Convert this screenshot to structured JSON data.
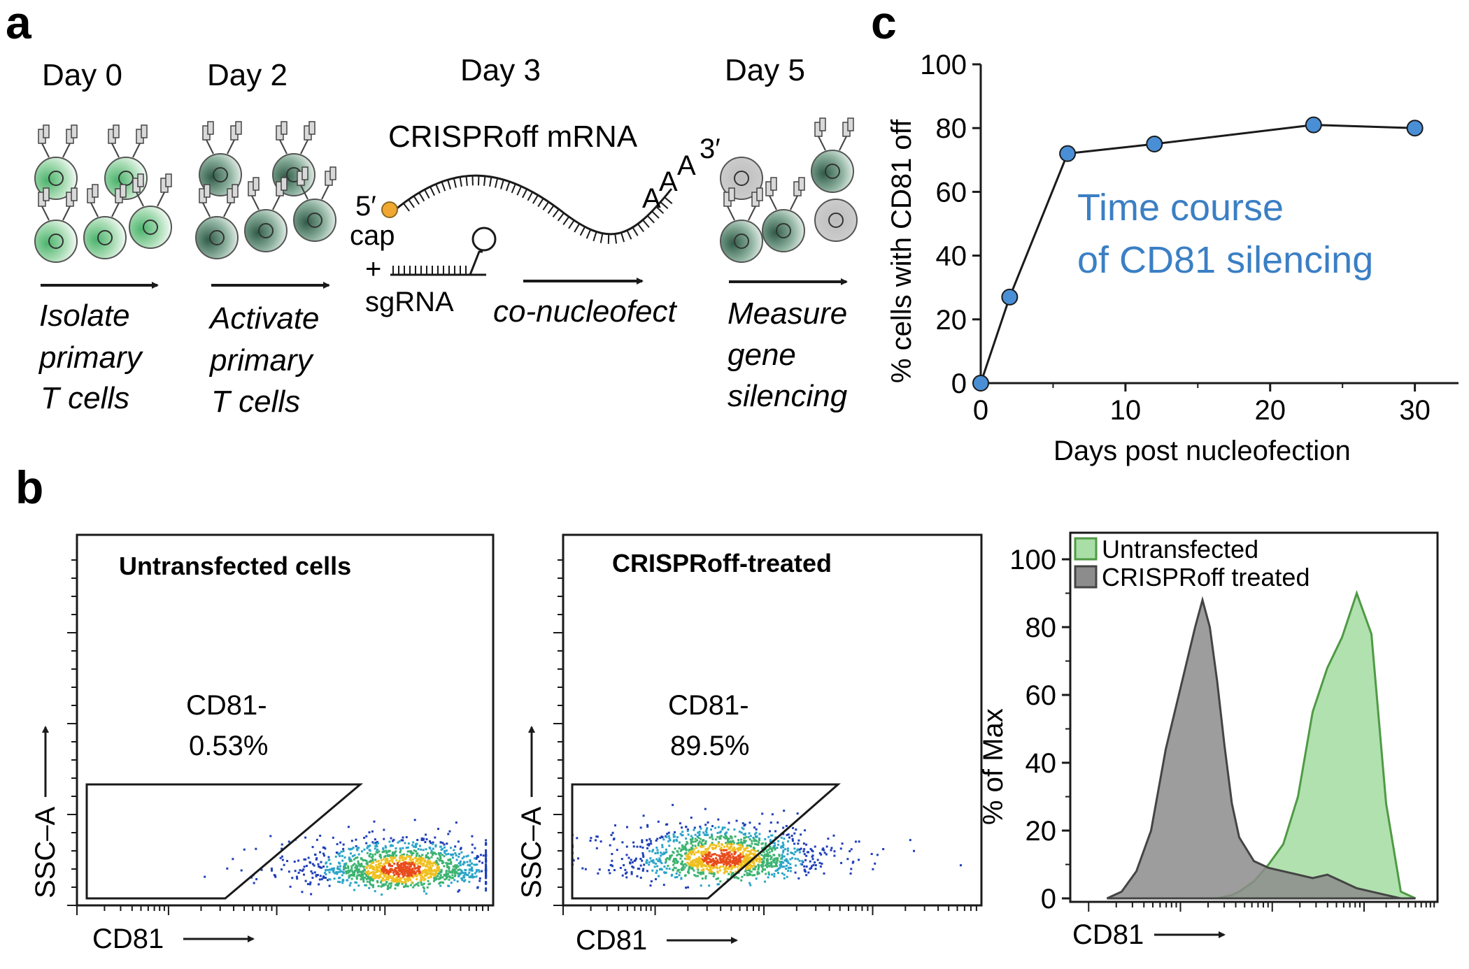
{
  "panels": {
    "a": "a",
    "b": "b",
    "c": "c"
  },
  "panel_a": {
    "days": [
      "Day 0",
      "Day 2",
      "Day 3",
      "Day 5"
    ],
    "steps": [
      [
        "Isolate",
        "primary",
        "T cells"
      ],
      [
        "Activate",
        "primary",
        "T cells"
      ],
      [
        "co-nucleofect"
      ],
      [
        "Measure",
        "gene",
        "silencing"
      ]
    ],
    "mrna_label": "CRISPRoff mRNA",
    "five_prime": "5′",
    "cap": "cap",
    "plus": "+",
    "sgrna": "sgRNA",
    "polya": [
      "A",
      "A",
      "A"
    ],
    "three_prime": "3′"
  },
  "colors": {
    "blue_point": "#4a8fd6",
    "blue_text": "#3b7fc4",
    "cell_green": "#4bb36c",
    "cell_dark": "#2f5b48",
    "cap_orange": "#f0a830",
    "hist_gray": "#8c8c8c",
    "hist_green": "#a9dea6",
    "hist_green_line": "#4f9a45"
  },
  "chart_data": [
    {
      "type": "line",
      "title": "",
      "annotation": [
        "Time course",
        "of CD81 silencing"
      ],
      "xlabel": "Days post nucleofection",
      "ylabel": "% cells with CD81 off",
      "x": [
        0,
        2,
        6,
        12,
        23,
        30
      ],
      "y": [
        0,
        27,
        72,
        75,
        81,
        80
      ],
      "xlim": [
        0,
        32
      ],
      "ylim": [
        0,
        100
      ],
      "xticks": [
        0,
        10,
        20,
        30
      ],
      "yticks": [
        0,
        20,
        40,
        60,
        80,
        100
      ],
      "xtick_labels": [
        "0",
        "10",
        "20",
        "30"
      ],
      "ytick_labels": [
        "0",
        "20",
        "40",
        "60",
        "80",
        "100"
      ]
    },
    {
      "type": "scatter",
      "title": "Untransfected cells",
      "gate_label": [
        "CD81-",
        "0.53%"
      ],
      "xlabel": "CD81",
      "ylabel": "SSC–A",
      "population_center": [
        0.78,
        0.1
      ],
      "population_spread": [
        0.1,
        0.04
      ]
    },
    {
      "type": "scatter",
      "title": "CRISPRoff-treated",
      "gate_label": [
        "CD81-",
        "89.5%"
      ],
      "xlabel": "CD81",
      "ylabel": "SSC–A",
      "population_center": [
        0.38,
        0.13
      ],
      "population_spread": [
        0.1,
        0.045
      ]
    },
    {
      "type": "area",
      "xlabel": "CD81",
      "ylabel": "% of Max",
      "ylim": [
        0,
        100
      ],
      "yticks": [
        0,
        20,
        40,
        60,
        80,
        100
      ],
      "ytick_labels": [
        "0",
        "20",
        "40",
        "60",
        "80",
        "100"
      ],
      "legend_position": "top-left",
      "x": [
        0.1,
        0.14,
        0.18,
        0.22,
        0.26,
        0.3,
        0.34,
        0.36,
        0.38,
        0.4,
        0.42,
        0.44,
        0.46,
        0.5,
        0.54,
        0.58,
        0.62,
        0.66,
        0.7,
        0.74,
        0.78,
        0.82,
        0.86,
        0.9,
        0.94
      ],
      "series": [
        {
          "name": "Untransfected",
          "values": [
            0,
            0,
            0,
            0,
            0,
            0,
            0,
            0,
            0,
            0,
            0.5,
            1,
            2,
            5,
            10,
            16,
            30,
            55,
            68,
            77,
            90,
            78,
            28,
            2,
            0
          ]
        },
        {
          "name": "CRISPRoff treated",
          "values": [
            0,
            2,
            8,
            20,
            44,
            62,
            80,
            88,
            80,
            64,
            45,
            28,
            18,
            11,
            9,
            8,
            7,
            6,
            7,
            5,
            3,
            2,
            1,
            0,
            0
          ]
        }
      ]
    }
  ]
}
